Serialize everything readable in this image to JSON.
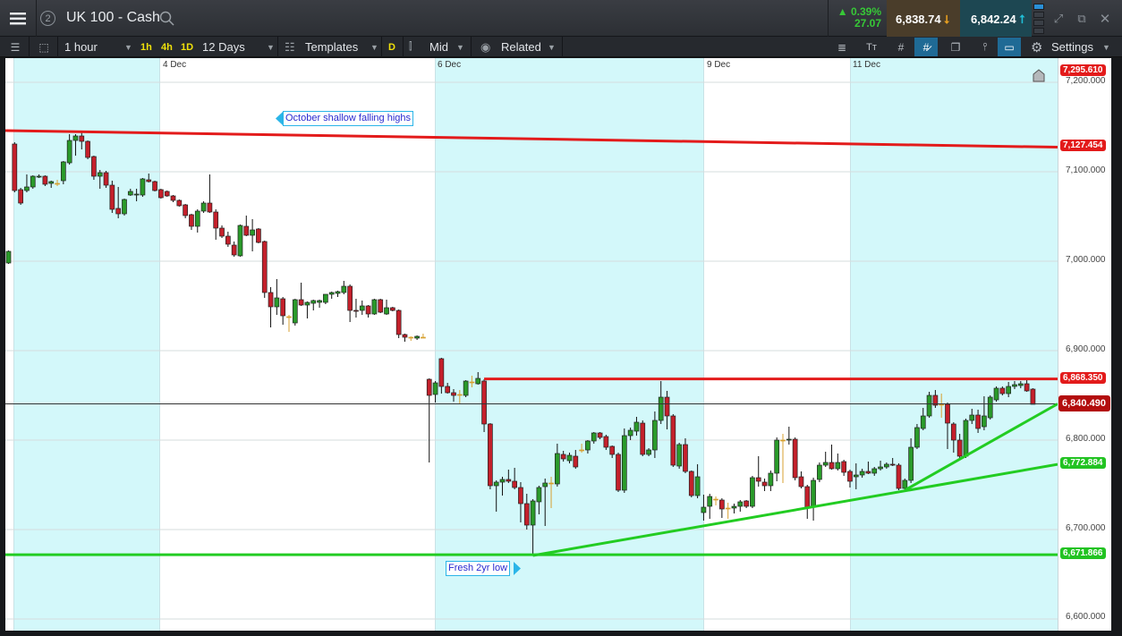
{
  "header": {
    "title": "UK 100 - Cash",
    "layout_number": "2",
    "change_pct": "0.39%",
    "change_abs": "27.07",
    "sell": "6,838.74",
    "buy": "6,842.24"
  },
  "toolbar": {
    "interval": "1 hour",
    "quick_1h": "1h",
    "quick_4h": "4h",
    "quick_1d": "1D",
    "range": "12 Days",
    "templates": "Templates",
    "d_label": "D",
    "price_type": "Mid",
    "related": "Related",
    "settings": "Settings"
  },
  "icons": {
    "menu": "hamburger-icon",
    "search": "search-icon",
    "expand": "expand-icon",
    "popout": "popout-icon",
    "close": "close-icon"
  },
  "colors": {
    "up": "#2a9a2a",
    "down": "#c4202b",
    "doji": "#d8a030",
    "resistance": "#e31b1b",
    "support": "#22cc22",
    "sell_bg": "#4a3d2a",
    "buy_bg": "#1d4752"
  },
  "chart_data": {
    "type": "candlestick",
    "x_tick_labels": [
      "4 Dec",
      "6 Dec",
      "9 Dec",
      "11 Dec"
    ],
    "y_ticks": [
      "7,200.000",
      "7,100.000",
      "7,000.000",
      "6,900.000",
      "6,800.000",
      "6,700.000",
      "6,600.000"
    ],
    "ylim": [
      6590,
      7225
    ],
    "price_badges": {
      "max": "7,295.610",
      "falling_line": "7,127.454",
      "resistance": "6,868.350",
      "last": "6,840.490",
      "trend": "6,772.884",
      "low": "6,671.866"
    },
    "annotations": {
      "falling_highs": "October shallow falling highs",
      "low": "Fresh 2yr low"
    },
    "lines": [
      {
        "kind": "resistance",
        "from_price": 7146,
        "to_price": 7127.454,
        "start_candle": 0
      },
      {
        "kind": "resistance",
        "from_price": 6868.35,
        "to_price": 6868.35,
        "start_candle": 78
      },
      {
        "kind": "support",
        "from_price": 6671.866,
        "to_price": 6671.866,
        "start_candle": 0
      },
      {
        "kind": "support",
        "from_price": 6671,
        "to_price": 6772.884,
        "start_candle": 86
      },
      {
        "kind": "support",
        "from_price": 6744,
        "to_price": 6840.49,
        "start_candle": 147
      }
    ],
    "last_price": 6840.49,
    "ohlc": [
      [
        6998,
        7012,
        6997,
        7011
      ],
      [
        7131,
        7133,
        7077,
        7079
      ],
      [
        7080,
        7082,
        7063,
        7065
      ],
      [
        7079,
        7097,
        7077,
        7083
      ],
      [
        7083,
        7096,
        7081,
        7095
      ],
      [
        7094,
        7097,
        7093,
        7095
      ],
      [
        7095,
        7096,
        7084,
        7086
      ],
      [
        7087,
        7090,
        7082,
        7089
      ],
      [
        7087,
        7091,
        7084,
        7087
      ],
      [
        7090,
        7112,
        7086,
        7111
      ],
      [
        7110,
        7142,
        7108,
        7135
      ],
      [
        7135,
        7142,
        7118,
        7140
      ],
      [
        7140,
        7144,
        7125,
        7134
      ],
      [
        7134,
        7135,
        7114,
        7116
      ],
      [
        7117,
        7118,
        7091,
        7095
      ],
      [
        7095,
        7102,
        7081,
        7099
      ],
      [
        7099,
        7101,
        7082,
        7085
      ],
      [
        7085,
        7090,
        7054,
        7058
      ],
      [
        7059,
        7083,
        7048,
        7053
      ],
      [
        7053,
        7070,
        7051,
        7069
      ],
      [
        7074,
        7081,
        7073,
        7078
      ],
      [
        7074,
        7081,
        7067,
        7075
      ],
      [
        7074,
        7093,
        7072,
        7092
      ],
      [
        7091,
        7098,
        7088,
        7089
      ],
      [
        7089,
        7090,
        7078,
        7079
      ],
      [
        7080,
        7081,
        7070,
        7071
      ],
      [
        7078,
        7079,
        7072,
        7073
      ],
      [
        7073,
        7074,
        7066,
        7068
      ],
      [
        7068,
        7069,
        7061,
        7062
      ],
      [
        7063,
        7064,
        7048,
        7051
      ],
      [
        7052,
        7053,
        7035,
        7039
      ],
      [
        7039,
        7058,
        7032,
        7056
      ],
      [
        7056,
        7067,
        7054,
        7065
      ],
      [
        7065,
        7097,
        7054,
        7055
      ],
      [
        7055,
        7058,
        7024,
        7037
      ],
      [
        7037,
        7040,
        7026,
        7028
      ],
      [
        7028,
        7033,
        7016,
        7019
      ],
      [
        7018,
        7022,
        7005,
        7007
      ],
      [
        7006,
        7041,
        7005,
        7040
      ],
      [
        7039,
        7051,
        7028,
        7029
      ],
      [
        7029,
        7047,
        7011,
        7035
      ],
      [
        7036,
        7037,
        7020,
        7021
      ],
      [
        7022,
        7023,
        6959,
        6965
      ],
      [
        6965,
        6971,
        6926,
        6949
      ],
      [
        6949,
        6980,
        6940,
        6959
      ],
      [
        6958,
        6960,
        6929,
        6939
      ],
      [
        6938,
        6940,
        6921,
        6938
      ],
      [
        6931,
        6958,
        6928,
        6957
      ],
      [
        6957,
        6976,
        6950,
        6951
      ],
      [
        6951,
        6955,
        6936,
        6954
      ],
      [
        6953,
        6957,
        6945,
        6956
      ],
      [
        6954,
        6957,
        6948,
        6956
      ],
      [
        6954,
        6963,
        6952,
        6963
      ],
      [
        6963,
        6966,
        6958,
        6965
      ],
      [
        6964,
        6967,
        6960,
        6966
      ],
      [
        6965,
        6978,
        6963,
        6972
      ],
      [
        6972,
        6974,
        6932,
        6945
      ],
      [
        6945,
        6958,
        6937,
        6944
      ],
      [
        6945,
        6956,
        6940,
        6950
      ],
      [
        6950,
        6951,
        6937,
        6941
      ],
      [
        6941,
        6958,
        6940,
        6957
      ],
      [
        6957,
        6958,
        6942,
        6943
      ],
      [
        6941,
        6957,
        6940,
        6948
      ],
      [
        6948,
        6949,
        6944,
        6945
      ],
      [
        6945,
        6946,
        6914,
        6918
      ],
      [
        6918,
        6919,
        6910,
        6915
      ],
      [
        6915,
        6916,
        6911,
        6915
      ],
      [
        6914,
        6917,
        6912,
        6916
      ],
      [
        6915,
        6919,
        6914,
        6915
      ],
      [
        6868,
        6869,
        6775,
        6850
      ],
      [
        6851,
        6866,
        6842,
        6864
      ],
      [
        6891,
        6892,
        6852,
        6860
      ],
      [
        6860,
        6864,
        6852,
        6853
      ],
      [
        6853,
        6857,
        6843,
        6850
      ],
      [
        6851,
        6856,
        6841,
        6851
      ],
      [
        6850,
        6867,
        6848,
        6866
      ],
      [
        6865,
        6872,
        6859,
        6865
      ],
      [
        6863,
        6876,
        6862,
        6869
      ],
      [
        6866,
        6868,
        6809,
        6818
      ],
      [
        6818,
        6819,
        6745,
        6749
      ],
      [
        6749,
        6755,
        6720,
        6753
      ],
      [
        6753,
        6759,
        6738,
        6756
      ],
      [
        6756,
        6767,
        6752,
        6754
      ],
      [
        6754,
        6769,
        6745,
        6747
      ],
      [
        6747,
        6753,
        6708,
        6729
      ],
      [
        6729,
        6740,
        6700,
        6705
      ],
      [
        6705,
        6734,
        6672,
        6732
      ],
      [
        6731,
        6749,
        6717,
        6747
      ],
      [
        6748,
        6757,
        6704,
        6752
      ],
      [
        6752,
        6759,
        6724,
        6752
      ],
      [
        6751,
        6796,
        6748,
        6785
      ],
      [
        6784,
        6788,
        6776,
        6779
      ],
      [
        6777,
        6786,
        6774,
        6783
      ],
      [
        6782,
        6789,
        6768,
        6770
      ],
      [
        6789,
        6796,
        6786,
        6789
      ],
      [
        6789,
        6800,
        6785,
        6799
      ],
      [
        6799,
        6809,
        6796,
        6808
      ],
      [
        6808,
        6809,
        6801,
        6803
      ],
      [
        6804,
        6806,
        6789,
        6792
      ],
      [
        6793,
        6794,
        6780,
        6784
      ],
      [
        6784,
        6786,
        6742,
        6744
      ],
      [
        6744,
        6813,
        6741,
        6805
      ],
      [
        6805,
        6814,
        6800,
        6811
      ],
      [
        6810,
        6826,
        6805,
        6820
      ],
      [
        6819,
        6822,
        6782,
        6784
      ],
      [
        6784,
        6791,
        6782,
        6789
      ],
      [
        6789,
        6832,
        6780,
        6822
      ],
      [
        6822,
        6866,
        6818,
        6848
      ],
      [
        6848,
        6855,
        6812,
        6827
      ],
      [
        6827,
        6829,
        6770,
        6772
      ],
      [
        6771,
        6797,
        6768,
        6795
      ],
      [
        6795,
        6802,
        6763,
        6765
      ],
      [
        6765,
        6766,
        6736,
        6738
      ],
      [
        6738,
        6773,
        6735,
        6759
      ],
      [
        6719,
        6739,
        6710,
        6725
      ],
      [
        6726,
        6740,
        6712,
        6737
      ],
      [
        6734,
        6737,
        6727,
        6734
      ],
      [
        6733,
        6735,
        6713,
        6723
      ],
      [
        6724,
        6730,
        6712,
        6724
      ],
      [
        6724,
        6729,
        6718,
        6726
      ],
      [
        6726,
        6733,
        6720,
        6731
      ],
      [
        6732,
        6733,
        6724,
        6726
      ],
      [
        6726,
        6760,
        6724,
        6758
      ],
      [
        6758,
        6782,
        6748,
        6754
      ],
      [
        6753,
        6757,
        6743,
        6749
      ],
      [
        6749,
        6766,
        6743,
        6763
      ],
      [
        6763,
        6803,
        6754,
        6800
      ],
      [
        6800,
        6807,
        6752,
        6800
      ],
      [
        6800,
        6815,
        6795,
        6801
      ],
      [
        6801,
        6803,
        6755,
        6758
      ],
      [
        6759,
        6765,
        6746,
        6748
      ],
      [
        6748,
        6750,
        6712,
        6725
      ],
      [
        6725,
        6758,
        6710,
        6755
      ],
      [
        6756,
        6775,
        6753,
        6772
      ],
      [
        6772,
        6787,
        6770,
        6775
      ],
      [
        6775,
        6795,
        6767,
        6768
      ],
      [
        6768,
        6785,
        6766,
        6775
      ],
      [
        6776,
        6778,
        6760,
        6764
      ],
      [
        6765,
        6767,
        6747,
        6754
      ],
      [
        6759,
        6774,
        6745,
        6761
      ],
      [
        6761,
        6768,
        6758,
        6765
      ],
      [
        6765,
        6776,
        6762,
        6763
      ],
      [
        6763,
        6770,
        6760,
        6768
      ],
      [
        6768,
        6777,
        6766,
        6770
      ],
      [
        6770,
        6775,
        6768,
        6773
      ],
      [
        6773,
        6780,
        6771,
        6772
      ],
      [
        6772,
        6774,
        6744,
        6746
      ],
      [
        6746,
        6757,
        6743,
        6755
      ],
      [
        6755,
        6802,
        6752,
        6792
      ],
      [
        6792,
        6818,
        6790,
        6814
      ],
      [
        6813,
        6836,
        6811,
        6827
      ],
      [
        6827,
        6854,
        6825,
        6850
      ],
      [
        6850,
        6856,
        6836,
        6839
      ],
      [
        6840,
        6852,
        6825,
        6840
      ],
      [
        6840,
        6842,
        6790,
        6819
      ],
      [
        6818,
        6820,
        6786,
        6800
      ],
      [
        6800,
        6807,
        6780,
        6782
      ],
      [
        6782,
        6824,
        6780,
        6822
      ],
      [
        6822,
        6835,
        6818,
        6828
      ],
      [
        6828,
        6834,
        6808,
        6813
      ],
      [
        6815,
        6849,
        6811,
        6827
      ],
      [
        6825,
        6850,
        6823,
        6848
      ],
      [
        6845,
        6860,
        6843,
        6858
      ],
      [
        6858,
        6860,
        6850,
        6852
      ],
      [
        6852,
        6865,
        6848,
        6860
      ],
      [
        6860,
        6866,
        6857,
        6862
      ],
      [
        6861,
        6866,
        6858,
        6863
      ],
      [
        6863,
        6868,
        6854,
        6855
      ],
      [
        6857,
        6858,
        6840,
        6840
      ]
    ]
  }
}
